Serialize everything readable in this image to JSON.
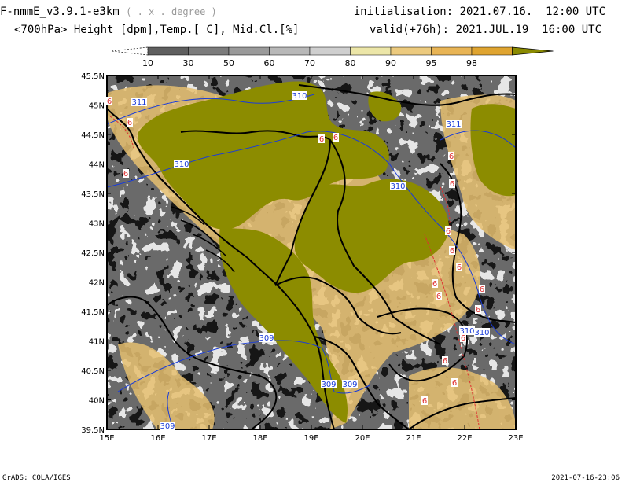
{
  "header": {
    "model": "F-nmmE_v3.9.1-e3km",
    "grid_note": "( . x . degree )",
    "variables": "<700hPa> Height [dpm],Temp.[ C], Mid.Cl.[%]",
    "init_label": "initialisation:",
    "init_value": "2021.07.16.  12:00 UTC",
    "valid_label": "valid(+76h):",
    "valid_value": "2021.JUL.19  16:00 UTC"
  },
  "colorbar": {
    "ticks": [
      "10",
      "30",
      "50",
      "60",
      "70",
      "80",
      "90",
      "95",
      "98"
    ],
    "colors": [
      "#5f5f5f",
      "#7c7c7c",
      "#9a9a9a",
      "#b8b8b8",
      "#cfcfcf",
      "#ece6a8",
      "#ecca7e",
      "#e8b455",
      "#dfa430",
      "#8a8a00"
    ]
  },
  "map": {
    "lat_labels": [
      "45.5N",
      "45N",
      "44.5N",
      "44N",
      "43.5N",
      "43N",
      "42.5N",
      "42N",
      "41.5N",
      "41N",
      "40.5N",
      "40N",
      "39.5N"
    ],
    "lon_labels": [
      "15E",
      "16E",
      "17E",
      "18E",
      "19E",
      "20E",
      "21E",
      "22E",
      "23E"
    ],
    "height_contours": [
      "311",
      "310",
      "310",
      "310",
      "309",
      "309",
      "309",
      "309",
      "310",
      "310",
      "311"
    ],
    "temp_labels": [
      "6",
      "6",
      "6",
      "6",
      "6",
      "6",
      "6",
      "6",
      "6",
      "6",
      "6",
      "6",
      "6",
      "6",
      "6",
      "6",
      "6",
      "6"
    ],
    "colors": {
      "background": "#e6e6e6",
      "olive": "#8c8c00",
      "height_contour": "#1a3cd8",
      "temp_contour": "#e03030",
      "border": "#000000"
    }
  },
  "footer": {
    "left": "GrADS: COLA/IGES",
    "right": "2021-07-16-23:06"
  }
}
